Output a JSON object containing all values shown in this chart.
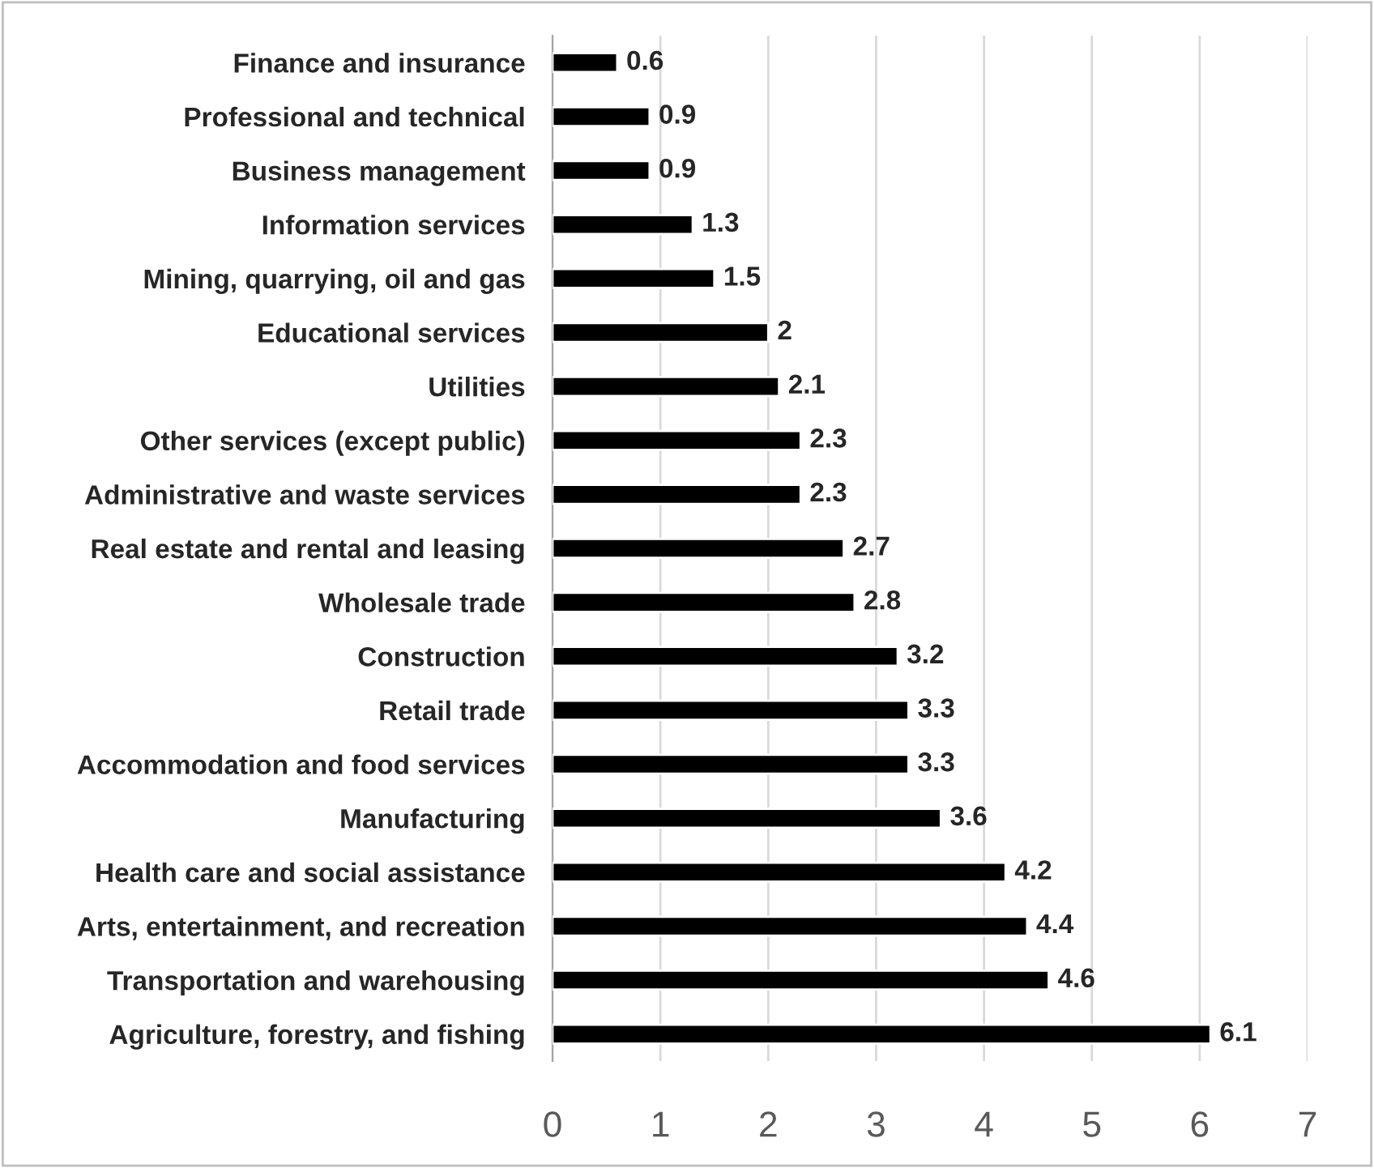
{
  "chart_data": {
    "type": "bar",
    "orientation": "horizontal",
    "categories": [
      "Finance and insurance",
      "Professional and technical",
      "Business management",
      "Information services",
      "Mining, quarrying, oil and gas",
      "Educational services",
      "Utilities",
      "Other services (except public)",
      "Administrative and waste services",
      "Real estate and rental and leasing",
      "Wholesale trade",
      "Construction",
      "Retail trade",
      "Accommodation and food services",
      "Manufacturing",
      "Health care and social assistance",
      "Arts, entertainment, and recreation",
      "Transportation and warehousing",
      "Agriculture, forestry, and fishing"
    ],
    "values": [
      0.6,
      0.9,
      0.9,
      1.3,
      1.5,
      2,
      2.1,
      2.3,
      2.3,
      2.7,
      2.8,
      3.2,
      3.3,
      3.3,
      3.6,
      4.2,
      4.4,
      4.6,
      6.1
    ],
    "color": "#000000",
    "xlim": [
      0,
      7
    ],
    "xticks": [
      0,
      1,
      2,
      3,
      4,
      5,
      6,
      7
    ],
    "grid": "x",
    "data_labels": true,
    "legend": false
  }
}
